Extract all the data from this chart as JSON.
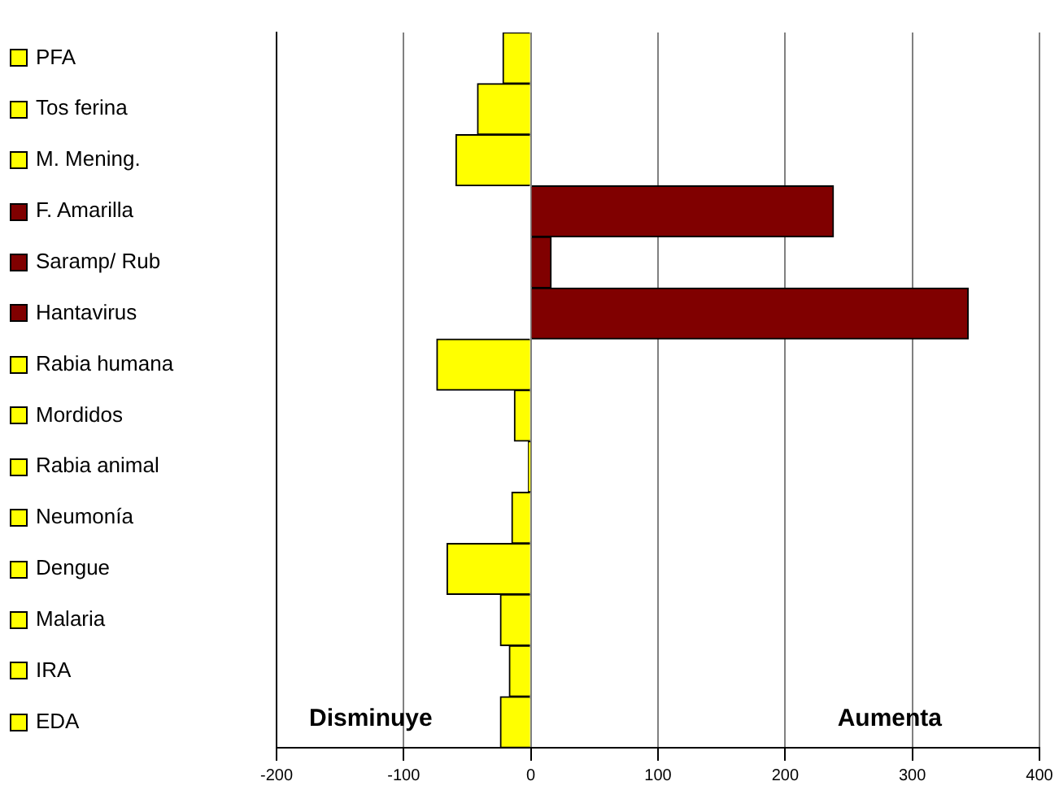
{
  "chart_data": {
    "type": "bar",
    "orientation": "horizontal",
    "categories": [
      "PFA",
      "Tos ferina",
      "M. Mening.",
      "F. Amarilla",
      "Saramp/ Rub",
      "Hantavirus",
      "Rabia humana",
      "Mordidos",
      "Rabia animal",
      "Neumonía",
      "Dengue",
      "Malaria",
      "IRA",
      "EDA"
    ],
    "values": [
      -22,
      -42,
      -59,
      238,
      16,
      344,
      -74,
      -13,
      -2,
      -15,
      -66,
      -24,
      -17,
      -24
    ],
    "colors": [
      "#ffff00",
      "#ffff00",
      "#ffff00",
      "#800000",
      "#800000",
      "#800000",
      "#ffff00",
      "#ffff00",
      "#ffff00",
      "#ffff00",
      "#ffff00",
      "#ffff00",
      "#ffff00",
      "#ffff00"
    ],
    "xlim": [
      -200,
      400
    ],
    "xticks": [
      -200,
      -100,
      0,
      100,
      200,
      300,
      400
    ],
    "grid": "x",
    "annotations": [
      "Disminuye",
      "Aumenta"
    ]
  }
}
